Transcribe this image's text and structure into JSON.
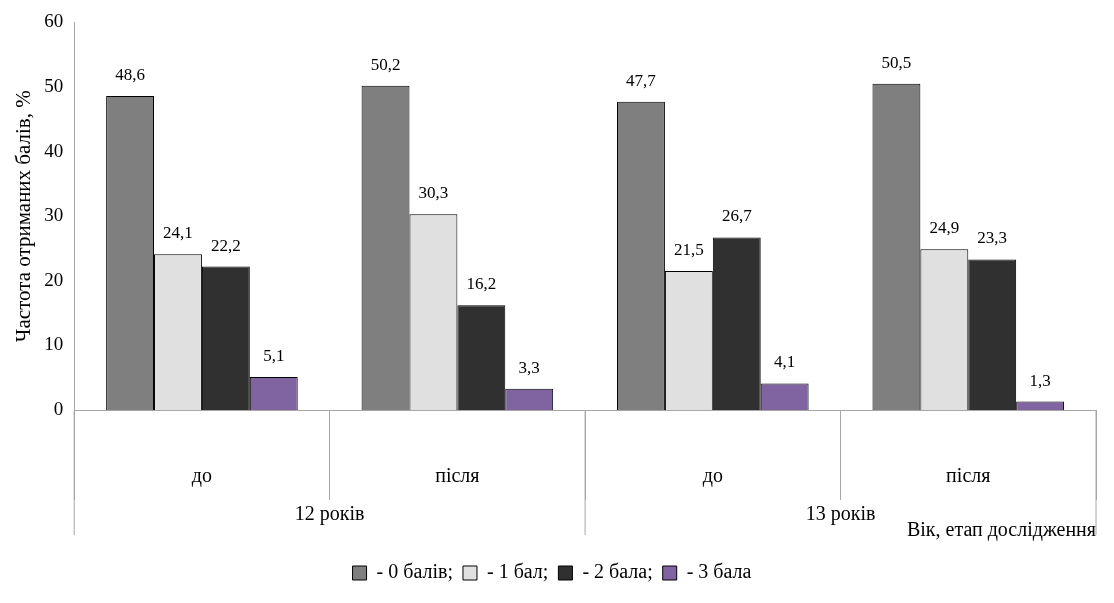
{
  "chart_data": {
    "type": "bar",
    "ylabel": "Частота отриманих балів, %",
    "xlabel": "Вік, етап дослідження",
    "categories": [
      "до",
      "після",
      "до",
      "після"
    ],
    "annotations": [
      "12 років",
      "13 років"
    ],
    "series": [
      {
        "name": "- 0 балів;",
        "color": "#7f7f7f",
        "values": [
          48.6,
          50.2,
          47.7,
          50.5
        ],
        "value_labels": [
          "48,6",
          "50,2",
          "47,7",
          "50,5"
        ]
      },
      {
        "name": "- 1 бал;",
        "color": "#e0e0e0",
        "values": [
          24.1,
          30.3,
          21.5,
          24.9
        ],
        "value_labels": [
          "24,1",
          "30,3",
          "21,5",
          "24,9"
        ]
      },
      {
        "name": "- 2 бала;",
        "color": "#303030",
        "values": [
          22.2,
          16.2,
          26.7,
          23.3
        ],
        "value_labels": [
          "22,2",
          "16,2",
          "26,7",
          "23,3"
        ]
      },
      {
        "name": "- 3 бала",
        "color": "#8064a2",
        "values": [
          5.1,
          3.3,
          4.1,
          1.3
        ],
        "value_labels": [
          "5,1",
          "3,3",
          "4,1",
          "1,3"
        ]
      }
    ],
    "ylim": [
      0,
      60
    ],
    "yticks": [
      0,
      10,
      20,
      30,
      40,
      50,
      60
    ],
    "grid": false,
    "legend": "bottom"
  }
}
